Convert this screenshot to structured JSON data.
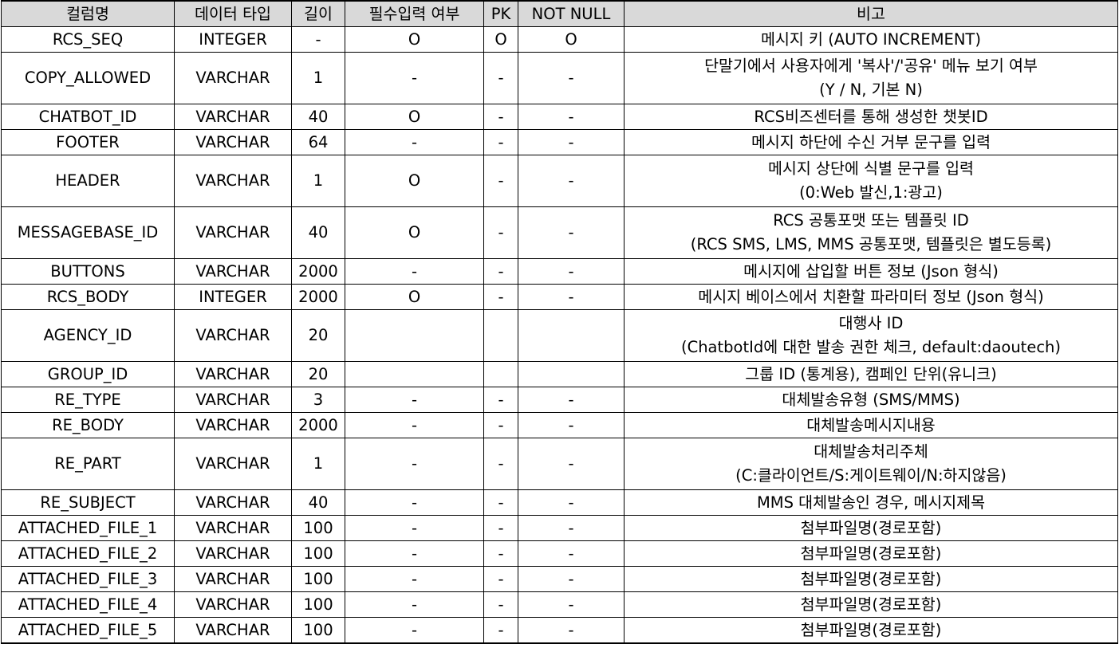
{
  "headers": [
    "컬럼명",
    "데이터 타입",
    "길이",
    "필수입력 여부",
    "PK",
    "NOT NULL",
    "비고"
  ],
  "rows": [
    {
      "name": "RCS_SEQ",
      "type": "INTEGER",
      "length": "-",
      "required": "O",
      "pk": "O",
      "not_null": "O",
      "remarks": [
        "메시지 키 (AUTO INCREMENT)"
      ]
    },
    {
      "name": "COPY_ALLOWED",
      "type": "VARCHAR",
      "length": "1",
      "required": "-",
      "pk": "-",
      "not_null": "-",
      "remarks": [
        "단말기에서 사용자에게 '복사'/'공유' 메뉴 보기 여부",
        "(Y / N, 기본 N)"
      ]
    },
    {
      "name": "CHATBOT_ID",
      "type": "VARCHAR",
      "length": "40",
      "required": "O",
      "pk": "-",
      "not_null": "-",
      "remarks": [
        "RCS비즈센터를 통해 생성한 챗봇ID"
      ]
    },
    {
      "name": "FOOTER",
      "type": "VARCHAR",
      "length": "64",
      "required": "-",
      "pk": "-",
      "not_null": "-",
      "remarks": [
        "메시지 하단에 수신 거부 문구를 입력"
      ]
    },
    {
      "name": "HEADER",
      "type": "VARCHAR",
      "length": "1",
      "required": "O",
      "pk": "-",
      "not_null": "-",
      "remarks": [
        "메시지 상단에 식별 문구를 입력",
        "(0:Web 발신,1:광고)"
      ]
    },
    {
      "name": "MESSAGEBASE_ID",
      "type": "VARCHAR",
      "length": "40",
      "required": "O",
      "pk": "-",
      "not_null": "-",
      "remarks": [
        "RCS 공통포맷 또는 템플릿 ID",
        "(RCS SMS, LMS, MMS 공통포맷, 템플릿은 별도등록)"
      ]
    },
    {
      "name": "BUTTONS",
      "type": "VARCHAR",
      "length": "2000",
      "required": "-",
      "pk": "-",
      "not_null": "-",
      "remarks": [
        "메시지에 삽입할 버튼 정보 (Json 형식)"
      ]
    },
    {
      "name": "RCS_BODY",
      "type": "INTEGER",
      "length": "2000",
      "required": "O",
      "pk": "-",
      "not_null": "-",
      "remarks": [
        "메시지 베이스에서 치환할 파라미터 정보 (Json 형식)"
      ]
    },
    {
      "name": "AGENCY_ID",
      "type": "VARCHAR",
      "length": "20",
      "required": "",
      "pk": "",
      "not_null": "",
      "remarks": [
        "대행사 ID",
        "(ChatbotId에 대한 발송 권한 체크, default:daoutech)"
      ]
    },
    {
      "name": "GROUP_ID",
      "type": "VARCHAR",
      "length": "20",
      "required": "",
      "pk": "",
      "not_null": "",
      "remarks": [
        "그룹 ID (통계용), 캠페인 단위(유니크)"
      ]
    },
    {
      "name": "RE_TYPE",
      "type": "VARCHAR",
      "length": "3",
      "required": "-",
      "pk": "-",
      "not_null": "-",
      "remarks": [
        "대체발송유형 (SMS/MMS)"
      ]
    },
    {
      "name": "RE_BODY",
      "type": "VARCHAR",
      "length": "2000",
      "required": "-",
      "pk": "-",
      "not_null": "-",
      "remarks": [
        "대체발송메시지내용"
      ]
    },
    {
      "name": "RE_PART",
      "type": "VARCHAR",
      "length": "1",
      "required": "-",
      "pk": "-",
      "not_null": "-",
      "remarks": [
        "대체발송처리주체",
        "(C:클라이언트/S:게이트웨이/N:하지않음)"
      ]
    },
    {
      "name": "RE_SUBJECT",
      "type": "VARCHAR",
      "length": "40",
      "required": "-",
      "pk": "-",
      "not_null": "-",
      "remarks": [
        "MMS 대체발송인 경우, 메시지제목"
      ]
    },
    {
      "name": "ATTACHED_FILE_1",
      "type": "VARCHAR",
      "length": "100",
      "required": "-",
      "pk": "-",
      "not_null": "-",
      "remarks": [
        "첨부파일명(경로포함)"
      ]
    },
    {
      "name": "ATTACHED_FILE_2",
      "type": "VARCHAR",
      "length": "100",
      "required": "-",
      "pk": "-",
      "not_null": "-",
      "remarks": [
        "첨부파일명(경로포함)"
      ]
    },
    {
      "name": "ATTACHED_FILE_3",
      "type": "VARCHAR",
      "length": "100",
      "required": "-",
      "pk": "-",
      "not_null": "-",
      "remarks": [
        "첨부파일명(경로포함)"
      ]
    },
    {
      "name": "ATTACHED_FILE_4",
      "type": "VARCHAR",
      "length": "100",
      "required": "-",
      "pk": "-",
      "not_null": "-",
      "remarks": [
        "첨부파일명(경로포함)"
      ]
    },
    {
      "name": "ATTACHED_FILE_5",
      "type": "VARCHAR",
      "length": "100",
      "required": "-",
      "pk": "-",
      "not_null": "-",
      "remarks": [
        "첨부파일명(경로포함)"
      ]
    }
  ]
}
